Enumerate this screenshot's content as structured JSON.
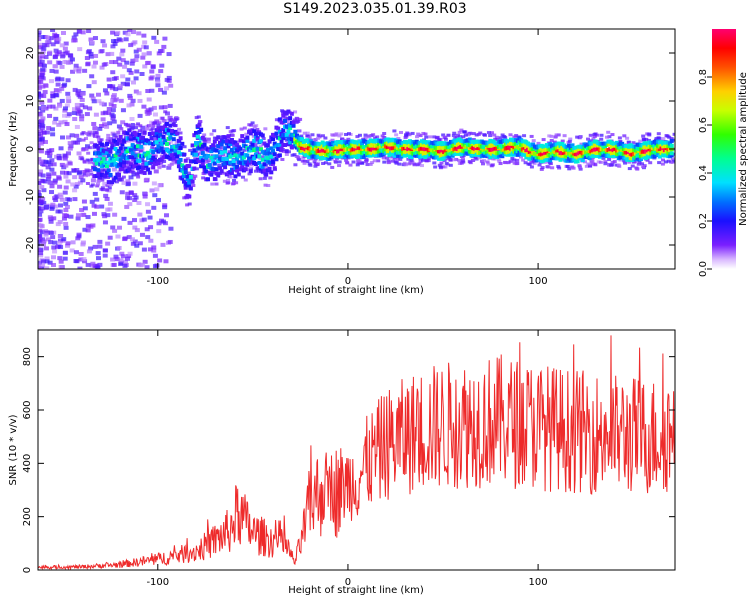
{
  "title": "S149.2023.035.01.39.R03",
  "chart_data": [
    {
      "type": "heatmap",
      "xlabel": "Height of straight line (km)",
      "ylabel": "Frequency (Hz)",
      "xlim": [
        -163,
        172
      ],
      "ylim": [
        -25,
        25
      ],
      "x_ticks": [
        -100,
        0,
        100
      ],
      "y_ticks": [
        -20,
        -10,
        0,
        10,
        20
      ],
      "colorbar": {
        "label": "Normalized spectral amplitude",
        "range": [
          0,
          1
        ],
        "ticks": [
          0.0,
          0.2,
          0.4,
          0.6,
          0.8
        ],
        "tick_labels": [
          "0.0",
          "0.2",
          "0.4",
          "0.6",
          "0.8"
        ]
      },
      "ridge": {
        "x": [
          -133,
          -125,
          -115,
          -105,
          -97,
          -90,
          -84,
          -79,
          -74,
          -66,
          -58,
          -49,
          -42,
          -37,
          -33,
          -29,
          -25,
          -20,
          -10,
          0,
          10,
          20,
          30,
          40,
          50,
          60,
          70,
          80,
          90,
          100,
          110,
          120,
          130,
          140,
          150,
          160,
          170
        ],
        "y": [
          -2,
          -3,
          0,
          -1,
          2,
          1,
          -7.5,
          2,
          -3,
          -1,
          -2,
          0,
          -2,
          1,
          4,
          3,
          0.5,
          0,
          -0.5,
          0,
          0,
          0.5,
          0,
          0,
          -0.5,
          0.5,
          0,
          0,
          0.5,
          -1,
          -0.5,
          -1,
          0,
          0,
          -1,
          0,
          0
        ]
      }
    },
    {
      "type": "line",
      "xlabel": "Height of straight line (km)",
      "ylabel": "SNR (10 * v/v)",
      "xlim": [
        -163,
        172
      ],
      "ylim": [
        0,
        900
      ],
      "x_ticks": [
        -100,
        0,
        100
      ],
      "y_ticks": [
        0,
        200,
        400,
        600,
        800
      ],
      "color": "#ee2a2a",
      "envelope": {
        "x": [
          -163,
          -140,
          -120,
          -100,
          -80,
          -70,
          -62,
          -58,
          -50,
          -40,
          -35,
          -28,
          -24,
          -20,
          -15,
          -10,
          -5,
          0,
          5,
          10,
          20,
          30,
          40,
          60,
          80,
          100,
          120,
          140,
          160,
          172
        ],
        "y": [
          10,
          12,
          20,
          40,
          70,
          110,
          150,
          220,
          140,
          110,
          120,
          30,
          120,
          250,
          290,
          320,
          290,
          330,
          340,
          400,
          470,
          500,
          530,
          550,
          560,
          540,
          520,
          510,
          500,
          520
        ]
      }
    }
  ]
}
